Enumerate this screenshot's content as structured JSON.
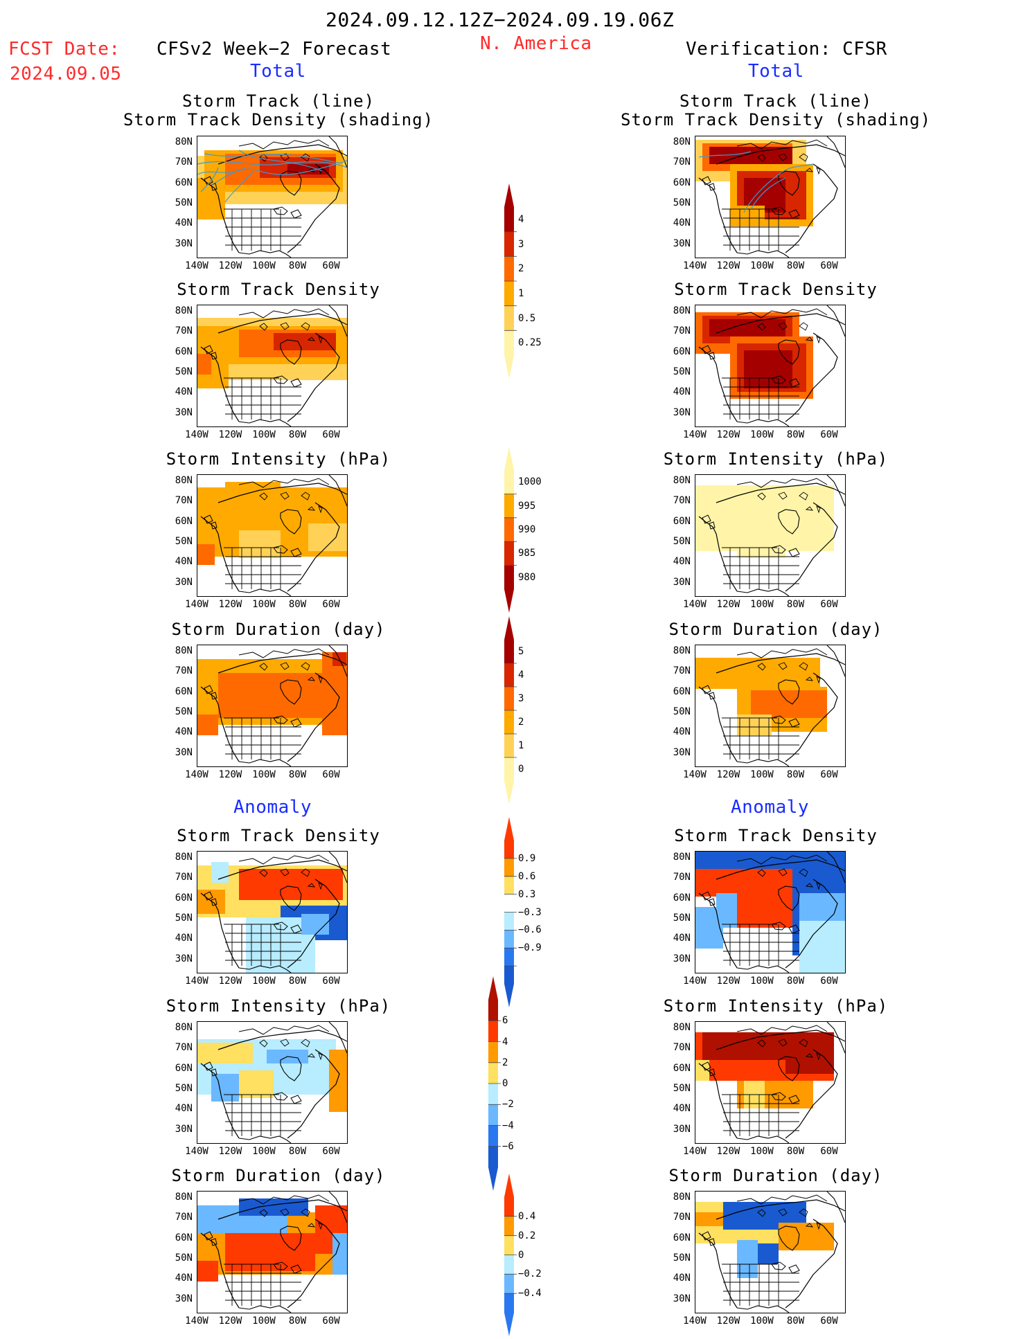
{
  "header": {
    "period": "2024.09.12.12Z−2024.09.19.06Z",
    "region": "N. America",
    "fcst_label": "FCST Date:",
    "fcst_date": "2024.09.05",
    "left_title": "CFSv2 Week−2 Forecast",
    "right_title": "Verification: CFSR",
    "total": "Total",
    "anomaly": "Anomaly"
  },
  "panel_titles": {
    "track_line": "Storm Track (line)",
    "track_shading": "Storm Track Density (shading)",
    "density": "Storm Track Density",
    "intensity": "Storm Intensity (hPa)",
    "duration": "Storm Duration (day)"
  },
  "axes": {
    "lat_labels": [
      "80N",
      "70N",
      "60N",
      "50N",
      "40N",
      "30N"
    ],
    "lon_labels": [
      "140W",
      "120W",
      "100W",
      "80W",
      "60W"
    ]
  },
  "colorbars": {
    "density_total": {
      "labels": [
        "4",
        "3",
        "2",
        "1",
        "0.5",
        "0.25"
      ],
      "colors": [
        "#a50000",
        "#d72600",
        "#ff6a00",
        "#ffaa00",
        "#ffd257",
        "#fff4a8"
      ]
    },
    "intensity_total": {
      "labels": [
        "1000",
        "995",
        "990",
        "985",
        "980"
      ],
      "colors": [
        "#fff4a8",
        "#ffaa00",
        "#ff6a00",
        "#d72600",
        "#a50000"
      ]
    },
    "duration_total": {
      "labels": [
        "5",
        "4",
        "3",
        "2",
        "1",
        "0"
      ],
      "colors": [
        "#a50000",
        "#d72600",
        "#ff6a00",
        "#ffaa00",
        "#ffd257",
        "#fff4a8"
      ]
    },
    "density_anom": {
      "labels": [
        "0.9",
        "0.6",
        "0.3",
        "−0.3",
        "−0.6",
        "−0.9"
      ],
      "colors": [
        "#ff3a00",
        "#ff9a00",
        "#ffe060",
        "#ffffff",
        "#b8ecff",
        "#6ab8ff",
        "#2a78f0",
        "#1a5ad0"
      ]
    },
    "intensity_anom": {
      "labels": [
        "6",
        "4",
        "2",
        "0",
        "−2",
        "−4",
        "−6"
      ],
      "colors": [
        "#b01000",
        "#ff3a00",
        "#ff9a00",
        "#ffe060",
        "#b8ecff",
        "#6ab8ff",
        "#2a78f0",
        "#1a5ad0"
      ]
    },
    "duration_anom": {
      "labels": [
        "0.4",
        "0.2",
        "0",
        "−0.2",
        "−0.4"
      ],
      "colors": [
        "#ff3a00",
        "#ff9a00",
        "#ffe060",
        "#b8ecff",
        "#6ab8ff",
        "#2a78f0"
      ]
    }
  },
  "colors": {
    "header_red": "#ff2a2a",
    "header_blue": "#1a2cff",
    "track_line": "#3a9bd0"
  }
}
